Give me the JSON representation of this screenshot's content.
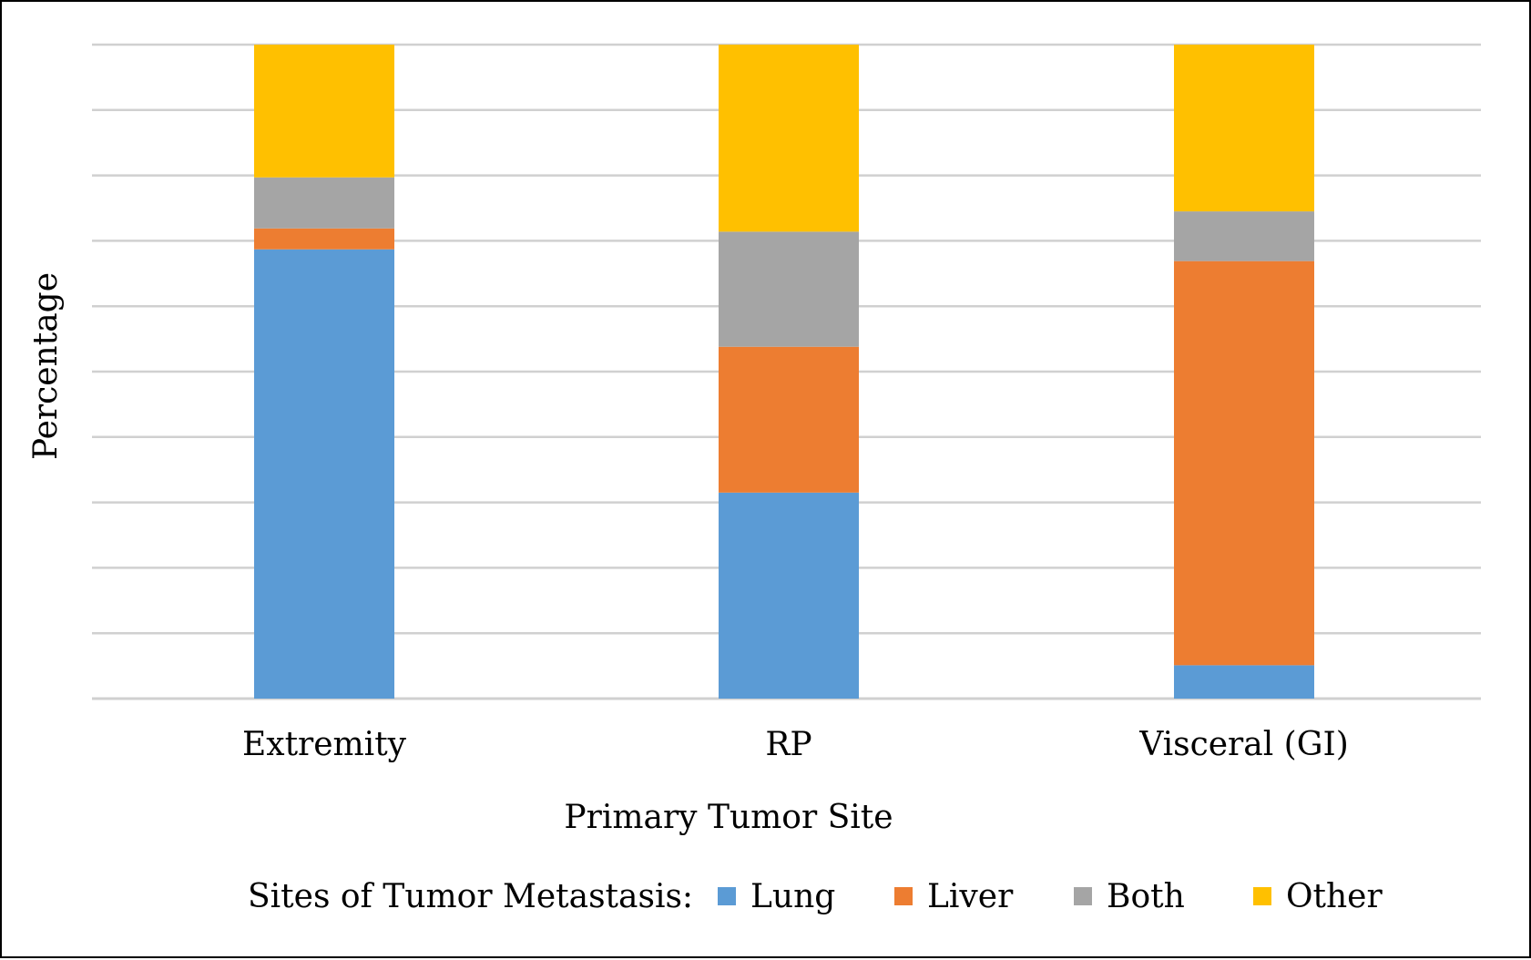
{
  "chart_data": {
    "type": "bar",
    "stacked": true,
    "percent_stacked": true,
    "categories": [
      "Extremity",
      "RP",
      "Visceral (GI)"
    ],
    "series": [
      {
        "name": "Lung",
        "values": [
          68.7,
          31.5,
          5.1
        ],
        "color": "#5B9BD5"
      },
      {
        "name": "Liver",
        "values": [
          3.2,
          22.3,
          61.8
        ],
        "color": "#ED7D31"
      },
      {
        "name": "Both",
        "values": [
          7.8,
          17.6,
          7.6
        ],
        "color": "#A5A5A5"
      },
      {
        "name": "Other",
        "values": [
          20.3,
          28.6,
          25.5
        ],
        "color": "#FFC000"
      }
    ],
    "xlabel": "Primary Tumor Site",
    "ylabel": "Percentage",
    "ylim": [
      0,
      100
    ],
    "y_gridline_count": 10,
    "y_tick_labels_shown": false,
    "grid": true,
    "gridline_color": "#D0D0D0",
    "legend": {
      "title": "Sites of Tumor Metastasis:",
      "placement": "bottom",
      "entries": [
        "Lung",
        "Liver",
        "Both",
        "Other"
      ]
    }
  }
}
